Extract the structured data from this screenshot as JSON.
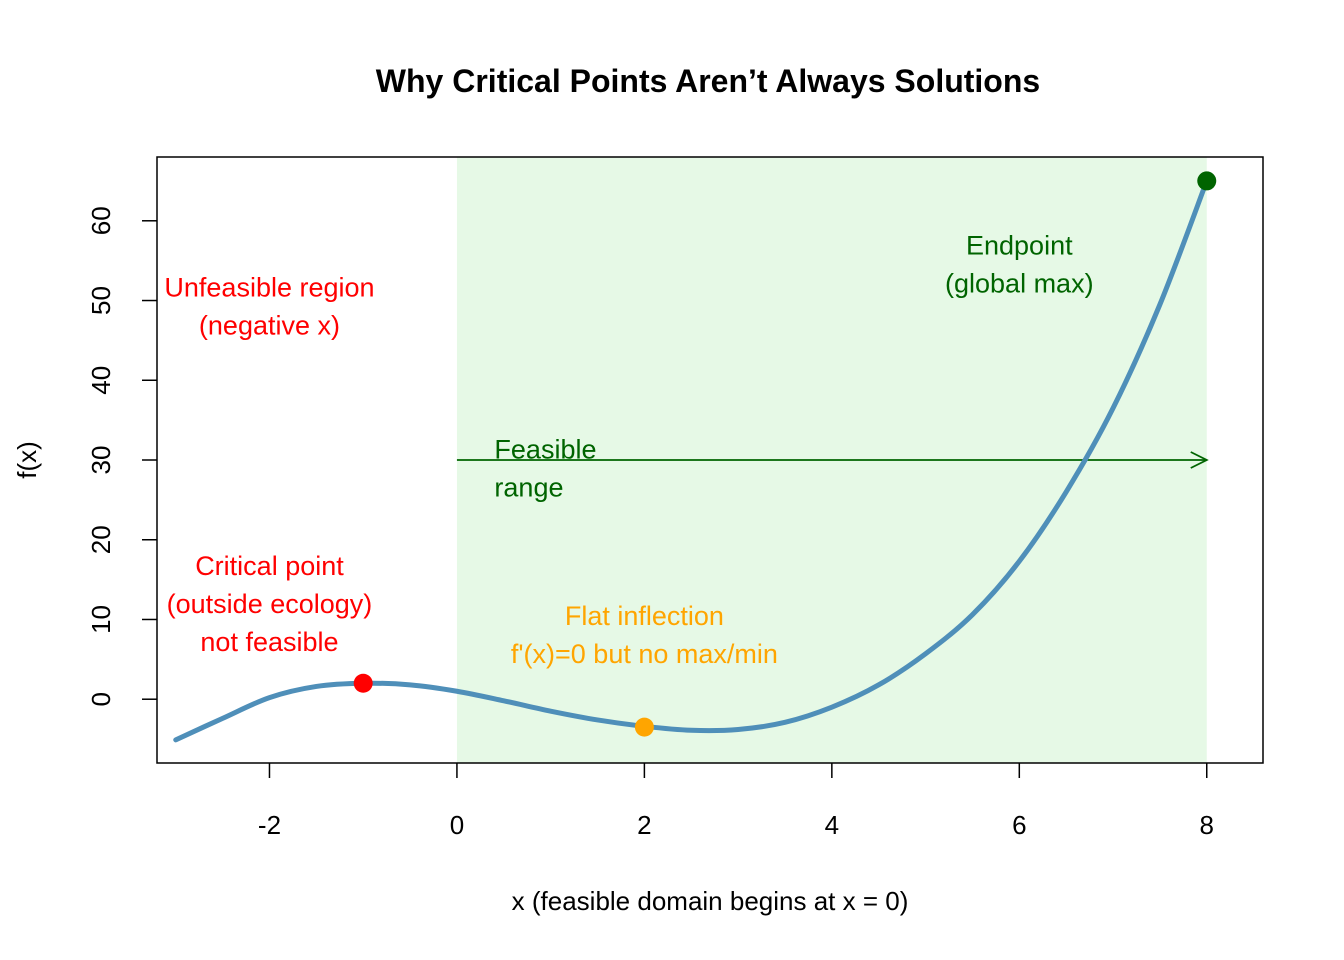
{
  "chart_data": {
    "type": "line",
    "title": "Why Critical Points Aren’t Always Solutions",
    "xlabel": "x (feasible domain begins at x = 0)",
    "ylabel": "f(x)",
    "xlim": [
      -3.2,
      8.6
    ],
    "ylim": [
      -8,
      68
    ],
    "x_ticks": [
      -2,
      0,
      2,
      4,
      6,
      8
    ],
    "y_ticks": [
      0,
      10,
      20,
      30,
      40,
      50,
      60
    ],
    "grid": false,
    "feasible_region": {
      "x_start": 0,
      "x_end": 8,
      "color": "#e6f9e6"
    },
    "curve": {
      "x_range": [
        -3,
        8
      ],
      "color": "#4f8fb9",
      "points": [
        [
          -3.0,
          -5.1
        ],
        [
          -2.5,
          -2.4
        ],
        [
          -2.0,
          0.2
        ],
        [
          -1.5,
          1.6
        ],
        [
          -1.0,
          2.0
        ],
        [
          -0.5,
          1.8
        ],
        [
          0.0,
          1.0
        ],
        [
          0.5,
          -0.2
        ],
        [
          1.0,
          -1.5
        ],
        [
          1.5,
          -2.6
        ],
        [
          2.0,
          -3.4
        ],
        [
          2.5,
          -3.9
        ],
        [
          3.0,
          -3.8
        ],
        [
          3.5,
          -2.9
        ],
        [
          4.0,
          -1.0
        ],
        [
          4.5,
          1.8
        ],
        [
          5.0,
          5.7
        ],
        [
          5.5,
          10.6
        ],
        [
          6.0,
          17.3
        ],
        [
          6.5,
          26.0
        ],
        [
          7.0,
          36.5
        ],
        [
          7.5,
          49.5
        ],
        [
          8.0,
          65.0
        ]
      ]
    },
    "key_points": [
      {
        "name": "critical-point",
        "x": -1,
        "y": 2.0,
        "color": "#ff0000"
      },
      {
        "name": "flat-inflection",
        "x": 2,
        "y": -3.5,
        "color": "#ffa500"
      },
      {
        "name": "endpoint",
        "x": 8,
        "y": 65.0,
        "color": "#006400"
      }
    ],
    "arrow": {
      "x_from": 0,
      "x_to": 8,
      "y": 30,
      "color": "#006400"
    },
    "annotations": [
      {
        "name": "unfeasible-region-label",
        "lines": [
          "Unfeasible region",
          "(negative x)"
        ],
        "x": -2.0,
        "y": 50.5,
        "color": "#ff0000",
        "align": "middle"
      },
      {
        "name": "critical-point-label",
        "lines": [
          "Critical point",
          "(outside ecology)",
          "not feasible"
        ],
        "x": -2.0,
        "y": 15.6,
        "color": "#ff0000",
        "align": "middle"
      },
      {
        "name": "feasible-range-label",
        "lines": [
          "Feasible",
          "range"
        ],
        "x": 0.4,
        "y": 30.2,
        "color": "#006400",
        "align": "start"
      },
      {
        "name": "flat-inflection-label",
        "lines": [
          "Flat inflection",
          "f'(x)=0 but no max/min"
        ],
        "x": 2.0,
        "y": 9.3,
        "color": "#ffa500",
        "align": "middle"
      },
      {
        "name": "endpoint-label",
        "lines": [
          "Endpoint",
          "(global max)"
        ],
        "x": 6.0,
        "y": 55.8,
        "color": "#006400",
        "align": "middle"
      }
    ]
  }
}
